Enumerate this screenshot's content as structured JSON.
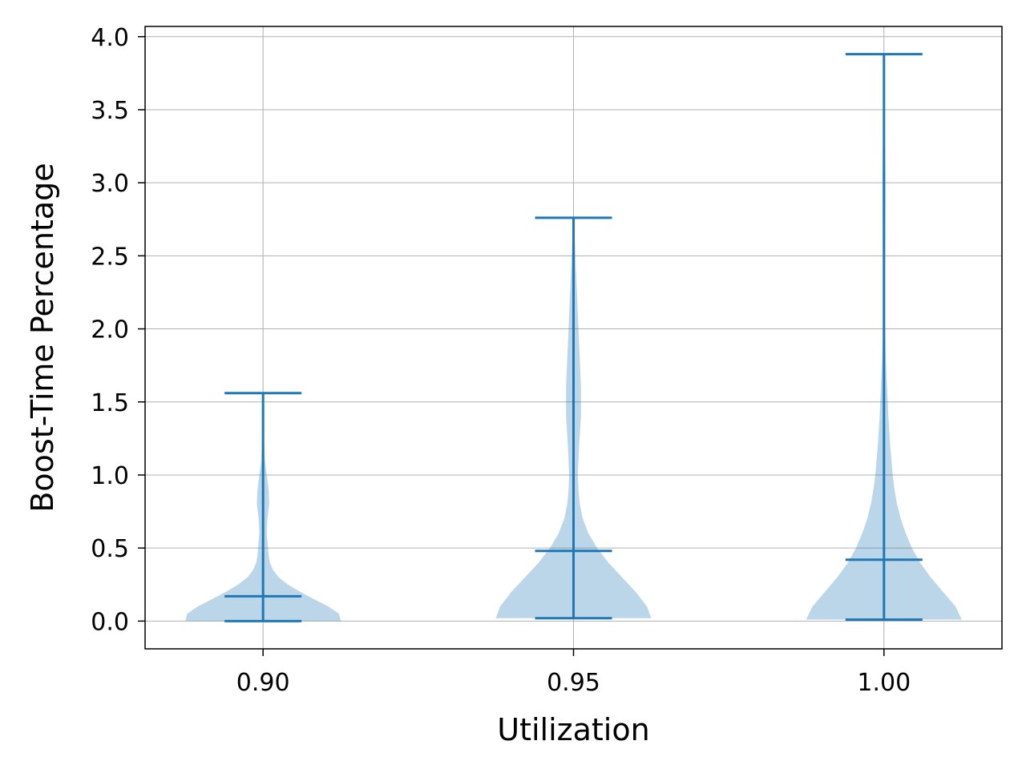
{
  "chart_data": {
    "type": "violin",
    "title": "",
    "xlabel": "Utilization",
    "ylabel": "Boost-Time Percentage",
    "xlim": [
      0.881,
      1.019
    ],
    "ylim": [
      -0.19,
      4.07
    ],
    "grid": true,
    "x_ticks": [
      {
        "value": 0.9,
        "label": "0.90"
      },
      {
        "value": 0.95,
        "label": "0.95"
      },
      {
        "value": 1.0,
        "label": "1.00"
      }
    ],
    "y_ticks": [
      {
        "value": 0.0,
        "label": "0.0"
      },
      {
        "value": 0.5,
        "label": "0.5"
      },
      {
        "value": 1.0,
        "label": "1.0"
      },
      {
        "value": 1.5,
        "label": "1.5"
      },
      {
        "value": 2.0,
        "label": "2.0"
      },
      {
        "value": 2.5,
        "label": "2.5"
      },
      {
        "value": 3.0,
        "label": "3.0"
      },
      {
        "value": 3.5,
        "label": "3.5"
      },
      {
        "value": 4.0,
        "label": "4.0"
      }
    ],
    "colors": {
      "line": "#1f77b4",
      "fill": "#1f77b4",
      "fill_opacity": 0.3,
      "grid": "#b0b0b0"
    },
    "violins": [
      {
        "x": 0.9,
        "min": 0.0,
        "max": 1.56,
        "median": 0.17,
        "density": [
          [
            0.0,
            0.0125
          ],
          [
            0.05,
            0.0122
          ],
          [
            0.1,
            0.0105
          ],
          [
            0.15,
            0.0082
          ],
          [
            0.2,
            0.006
          ],
          [
            0.25,
            0.004
          ],
          [
            0.3,
            0.0025
          ],
          [
            0.35,
            0.0016
          ],
          [
            0.4,
            0.0011
          ],
          [
            0.45,
            0.0009
          ],
          [
            0.5,
            0.0008
          ],
          [
            0.6,
            0.0006
          ],
          [
            0.7,
            0.0007
          ],
          [
            0.8,
            0.001
          ],
          [
            0.9,
            0.0009
          ],
          [
            1.0,
            0.0006
          ],
          [
            1.1,
            0.0003
          ],
          [
            1.2,
            0.0002
          ],
          [
            1.35,
            0.0001
          ],
          [
            1.56,
            5e-05
          ]
        ]
      },
      {
        "x": 0.95,
        "min": 0.02,
        "max": 2.76,
        "median": 0.48,
        "density": [
          [
            0.02,
            0.0125
          ],
          [
            0.1,
            0.0118
          ],
          [
            0.2,
            0.01
          ],
          [
            0.3,
            0.0078
          ],
          [
            0.4,
            0.0056
          ],
          [
            0.5,
            0.0038
          ],
          [
            0.6,
            0.0024
          ],
          [
            0.7,
            0.0015
          ],
          [
            0.8,
            0.001
          ],
          [
            0.9,
            0.0008
          ],
          [
            1.0,
            0.0007
          ],
          [
            1.2,
            0.0009
          ],
          [
            1.4,
            0.0012
          ],
          [
            1.6,
            0.0012
          ],
          [
            1.8,
            0.001
          ],
          [
            2.0,
            0.0008
          ],
          [
            2.2,
            0.0006
          ],
          [
            2.4,
            0.0004
          ],
          [
            2.6,
            0.0002
          ],
          [
            2.76,
            5e-05
          ]
        ]
      },
      {
        "x": 1.0,
        "min": 0.01,
        "max": 3.88,
        "median": 0.42,
        "density": [
          [
            0.01,
            0.0125
          ],
          [
            0.1,
            0.0115
          ],
          [
            0.2,
            0.0095
          ],
          [
            0.3,
            0.0075
          ],
          [
            0.4,
            0.0058
          ],
          [
            0.5,
            0.0045
          ],
          [
            0.6,
            0.0035
          ],
          [
            0.7,
            0.0027
          ],
          [
            0.8,
            0.0021
          ],
          [
            0.9,
            0.0017
          ],
          [
            1.0,
            0.0014
          ],
          [
            1.2,
            0.001
          ],
          [
            1.4,
            0.0007
          ],
          [
            1.6,
            0.0005
          ],
          [
            1.8,
            0.0003
          ],
          [
            2.0,
            0.0002
          ],
          [
            2.5,
            0.0002
          ],
          [
            3.0,
            0.00025
          ],
          [
            3.5,
            0.0001
          ],
          [
            3.88,
            3e-05
          ]
        ]
      }
    ]
  }
}
